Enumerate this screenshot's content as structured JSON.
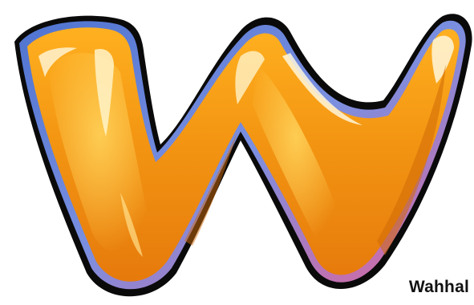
{
  "logo": {
    "icon": "w-letter-logo-icon",
    "colors": {
      "body_dark": "#e0700a",
      "body_mid": "#f59a10",
      "body_light": "#ffc23a",
      "highlight": "#fff3c8",
      "rim_blue": "#5b7fd6",
      "rim_pink": "#e0608c",
      "outline": "#0a0a0a"
    }
  },
  "caption": {
    "text": "Wahhal"
  }
}
